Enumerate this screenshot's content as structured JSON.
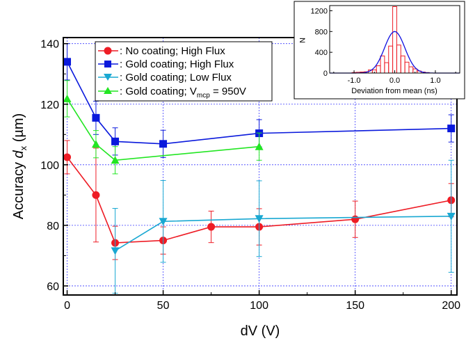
{
  "chart_data": [
    {
      "type": "line",
      "xlabel": "dV (V)",
      "ylabel_main": "Accuracy ",
      "ylabel_italic": "d",
      "ylabel_sub": "x",
      "ylabel_unit": " (µm)",
      "xlim": [
        -2,
        203
      ],
      "ylim": [
        57,
        142
      ],
      "xticks": [
        0,
        50,
        100,
        150,
        200
      ],
      "yticks": [
        60,
        80,
        100,
        120,
        140
      ],
      "grid": true,
      "legend_position": "top-left",
      "series": [
        {
          "name": ": No coating; High Flux",
          "color": "#ee1c25",
          "marker": "circle",
          "points": [
            {
              "x": 0,
              "y": 102.5,
              "err": 5.5
            },
            {
              "x": 15,
              "y": 90.0,
              "err": 15.5
            },
            {
              "x": 25,
              "y": 74.2,
              "err": 5.5
            },
            {
              "x": 50,
              "y": 75.0,
              "err": 4.5
            },
            {
              "x": 75,
              "y": 79.5,
              "err": 5.2
            },
            {
              "x": 100,
              "y": 79.5,
              "err": 6.0
            },
            {
              "x": 150,
              "y": 82.0,
              "err": 6.0
            },
            {
              "x": 200,
              "y": 88.3,
              "err": 5.5
            }
          ]
        },
        {
          "name": ": Gold coating; High Flux",
          "color": "#0a19dc",
          "marker": "square",
          "points": [
            {
              "x": 0,
              "y": 134.0,
              "err": 6.0
            },
            {
              "x": 15,
              "y": 115.5,
              "err": 5.5
            },
            {
              "x": 25,
              "y": 107.7,
              "err": 4.5
            },
            {
              "x": 50,
              "y": 106.9,
              "err": 4.5
            },
            {
              "x": 100,
              "y": 110.4,
              "err": 4.5
            },
            {
              "x": 200,
              "y": 112.0,
              "err": 4.5
            }
          ]
        },
        {
          "name": ": Gold coating; Low Flux",
          "color": "#19a8d2",
          "marker": "triangle-down",
          "points": [
            {
              "x": 25,
              "y": 71.6,
              "err": 14.0
            },
            {
              "x": 50,
              "y": 81.3,
              "err": 13.5
            },
            {
              "x": 100,
              "y": 82.2,
              "err": 12.5
            },
            {
              "x": 200,
              "y": 83.0,
              "err": 18.5
            }
          ]
        },
        {
          "name_pre": ": Gold coating; V",
          "name_sub": "mcp",
          "name_post": " = 950V",
          "color": "#22e622",
          "marker": "triangle-up",
          "points": [
            {
              "x": 0,
              "y": 121.8,
              "err": 6.0
            },
            {
              "x": 15,
              "y": 106.8,
              "err": 4.5
            },
            {
              "x": 25,
              "y": 101.5,
              "err": 4.5
            },
            {
              "x": 100,
              "y": 106.0,
              "err": 4.5
            }
          ]
        }
      ]
    },
    {
      "type": "bar",
      "xlabel": "Deviation from mean (ns)",
      "ylabel": "N",
      "xlim": [
        -1.6,
        1.6
      ],
      "ylim": [
        0,
        1300
      ],
      "xticks": [
        -1.0,
        0.0,
        1.0
      ],
      "xtick_labels": [
        "-1.0",
        "0.0",
        "1.0"
      ],
      "yticks": [
        0,
        400,
        800,
        1200
      ],
      "bin_width": 0.1,
      "bins": [
        {
          "x": -1.0,
          "n": 10
        },
        {
          "x": -0.9,
          "n": 15
        },
        {
          "x": -0.8,
          "n": 20
        },
        {
          "x": -0.7,
          "n": 25
        },
        {
          "x": -0.6,
          "n": 60
        },
        {
          "x": -0.5,
          "n": 60
        },
        {
          "x": -0.4,
          "n": 140
        },
        {
          "x": -0.3,
          "n": 330
        },
        {
          "x": -0.2,
          "n": 200
        },
        {
          "x": -0.1,
          "n": 520
        },
        {
          "x": 0.0,
          "n": 1280
        },
        {
          "x": 0.1,
          "n": 540
        },
        {
          "x": 0.2,
          "n": 330
        },
        {
          "x": 0.3,
          "n": 210
        },
        {
          "x": 0.4,
          "n": 120
        },
        {
          "x": 0.5,
          "n": 80
        },
        {
          "x": 0.6,
          "n": 40
        },
        {
          "x": 0.7,
          "n": 20
        },
        {
          "x": 0.8,
          "n": 10
        }
      ],
      "fit": {
        "type": "gaussian",
        "amplitude": 800,
        "mean": 0.0,
        "sigma": 0.25,
        "color": "#1010e0"
      },
      "bar_color": "#ee1c25"
    }
  ]
}
